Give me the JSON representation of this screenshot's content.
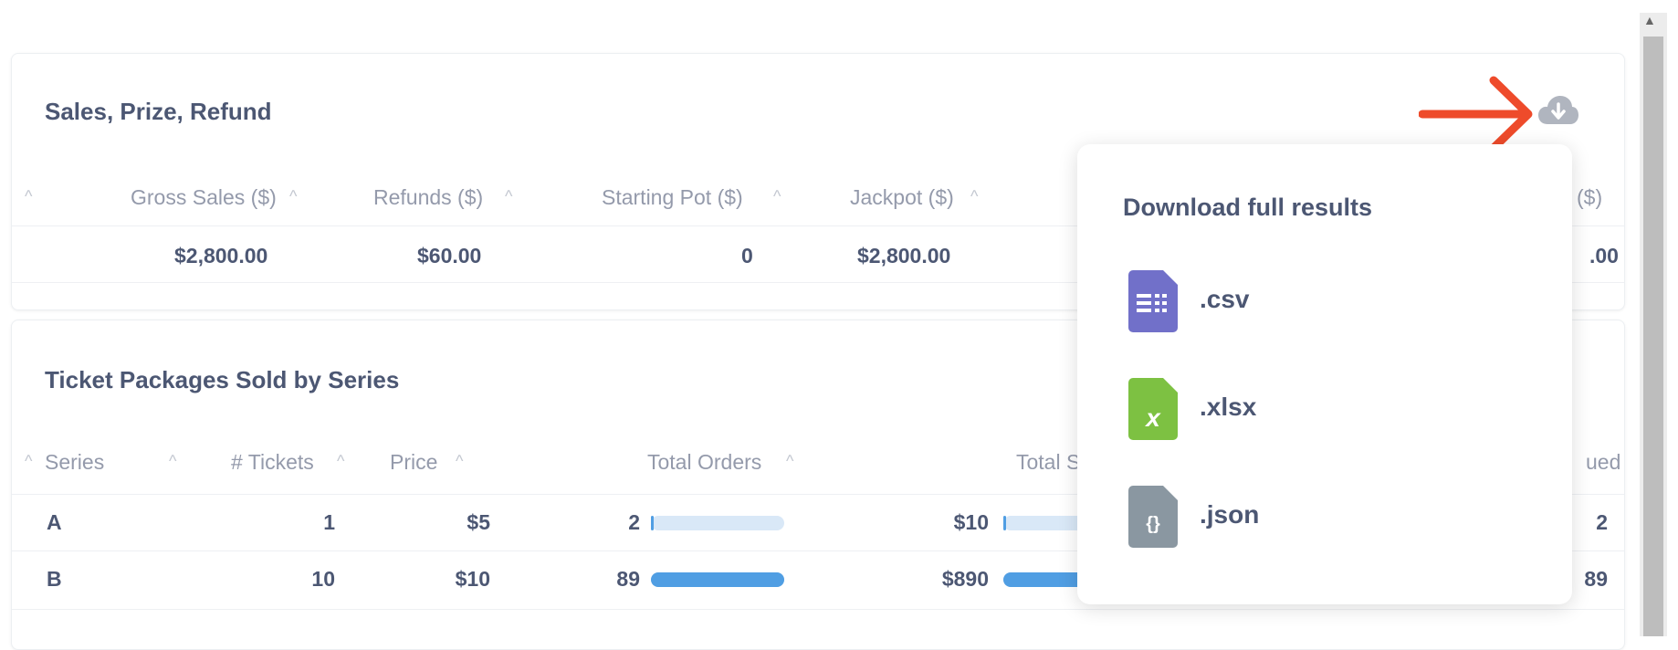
{
  "card1": {
    "title": "Sales, Prize, Refund",
    "columns": [
      "Gross Sales ($)",
      "Refunds ($)",
      "Starting Pot ($)",
      "Jackpot ($)",
      "($)"
    ],
    "row": [
      "$2,800.00",
      "$60.00",
      "0",
      "$2,800.00",
      ".00"
    ]
  },
  "card2": {
    "title": "Ticket Packages Sold by Series",
    "columns": [
      "Series",
      "# Tickets",
      "Price",
      "Total Orders",
      "Total S",
      "ued"
    ],
    "rows": [
      {
        "series": "A",
        "tickets": "1",
        "price": "$5",
        "orders": "2",
        "orders_fraction": 0.02,
        "sales": "$10",
        "sales_fraction": 0.02,
        "last": "2"
      },
      {
        "series": "B",
        "tickets": "10",
        "price": "$10",
        "orders": "89",
        "orders_fraction": 1.0,
        "sales": "$890",
        "sales_fraction": 1.0,
        "last": "89"
      }
    ]
  },
  "popover": {
    "title": "Download full results",
    "options": [
      {
        "label": ".csv",
        "icon": "csv-file-icon",
        "glyph": "☷",
        "color": "#7170c9"
      },
      {
        "label": ".xlsx",
        "icon": "xlsx-file-icon",
        "glyph": "x",
        "color": "#7dc142"
      },
      {
        "label": ".json",
        "icon": "json-file-icon",
        "glyph": "{}",
        "color": "#8a97a1"
      }
    ]
  },
  "icons": {
    "download": "cloud-download-icon",
    "annotation": "red-arrow-icon",
    "sort": "caret-up-icon"
  },
  "colors": {
    "bar": "#509ee3",
    "bar_track": "#d9e8f7",
    "arrow": "#ee4b2b"
  }
}
